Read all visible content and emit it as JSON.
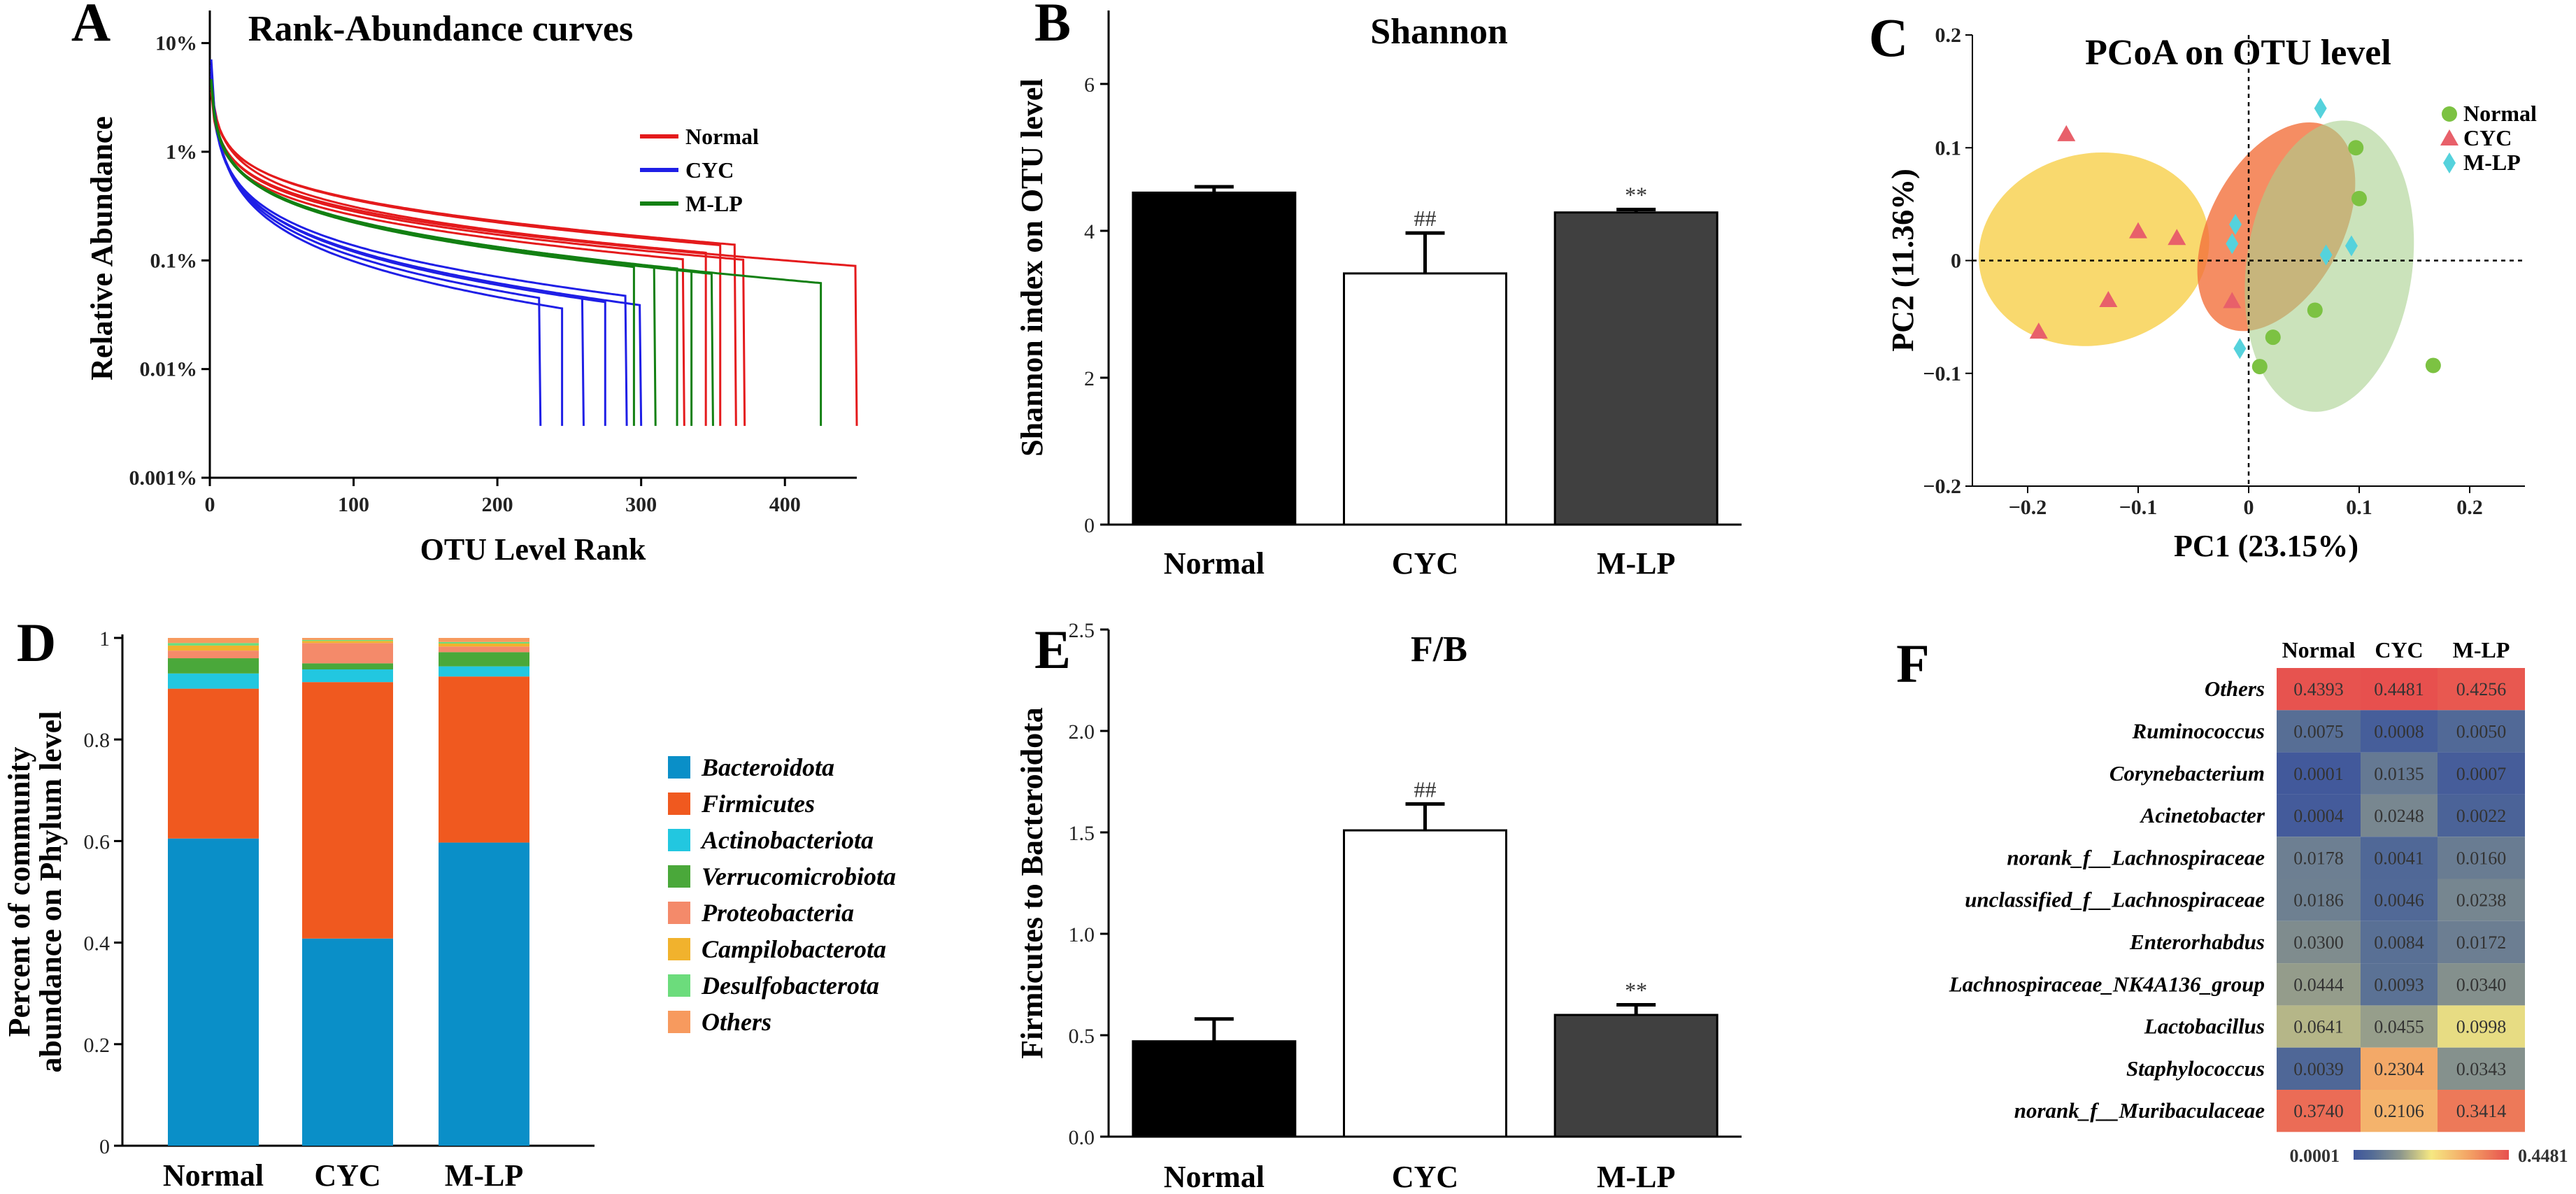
{
  "colors": {
    "normal": "#e41a1c",
    "cyc": "#1f1fe6",
    "mlp": "#138013",
    "bar_normal": "#000000",
    "bar_cyc": "#ffffff",
    "bar_mlp": "#404040",
    "pcoa_normal": "#7cc242",
    "pcoa_cyc": "#e8606a",
    "pcoa_mlp": "#55d2dc",
    "ellipse_normal": "#a9d18e",
    "ellipse_cyc": "#f2703c",
    "ellipse_mlp": "#f8cf4a"
  },
  "chart_data": [
    {
      "panel": "A",
      "type": "line",
      "title": "Rank-Abundance curves",
      "xlabel": "OTU Level Rank",
      "ylabel": "Relative Abundance",
      "xlim": [
        0,
        450
      ],
      "ylog": true,
      "ylim_log10": [
        -5,
        -0.7
      ],
      "x_ticks": [
        "0",
        "100",
        "200",
        "300",
        "400"
      ],
      "y_ticks": [
        "0.001%",
        "0.01%",
        "0.1%",
        "1%",
        "10%"
      ],
      "legend": [
        "Normal",
        "CYC",
        "M-LP"
      ],
      "series": [
        {
          "name": "Normal",
          "curves": [
            {
              "n": 372,
              "a": -1.4,
              "b": 0.55,
              "c": 0.0032
            },
            {
              "n": 355,
              "a": -1.35,
              "b": 0.52,
              "c": 0.0034
            },
            {
              "n": 330,
              "a": -1.45,
              "b": 0.54,
              "c": 0.0036
            },
            {
              "n": 345,
              "a": -1.3,
              "b": 0.58,
              "c": 0.003
            },
            {
              "n": 366,
              "a": -1.38,
              "b": 0.5,
              "c": 0.0035
            },
            {
              "n": 450,
              "a": -1.42,
              "b": 0.53,
              "c": 0.0033
            }
          ]
        },
        {
          "name": "CYC",
          "curves": [
            {
              "n": 230,
              "a": -1.2,
              "b": 0.85,
              "c": 0.004
            },
            {
              "n": 260,
              "a": -1.25,
              "b": 0.8,
              "c": 0.0042
            },
            {
              "n": 245,
              "a": -1.15,
              "b": 0.9,
              "c": 0.0038
            },
            {
              "n": 290,
              "a": -1.3,
              "b": 0.75,
              "c": 0.0041
            },
            {
              "n": 300,
              "a": -1.28,
              "b": 0.78,
              "c": 0.0044
            },
            {
              "n": 275,
              "a": -1.22,
              "b": 0.82,
              "c": 0.0039
            }
          ]
        },
        {
          "name": "M-LP",
          "curves": [
            {
              "n": 295,
              "a": -1.35,
              "b": 0.62,
              "c": 0.004
            },
            {
              "n": 325,
              "a": -1.38,
              "b": 0.6,
              "c": 0.0038
            },
            {
              "n": 350,
              "a": -1.33,
              "b": 0.63,
              "c": 0.0036
            },
            {
              "n": 335,
              "a": -1.36,
              "b": 0.61,
              "c": 0.0039
            },
            {
              "n": 425,
              "a": -1.34,
              "b": 0.62,
              "c": 0.0037
            },
            {
              "n": 310,
              "a": -1.37,
              "b": 0.6,
              "c": 0.0041
            }
          ]
        }
      ]
    },
    {
      "panel": "B",
      "type": "bar",
      "title": "Shannon",
      "ylabel": "Shannon index on OTU level",
      "categories": [
        "Normal",
        "CYC",
        "M-LP"
      ],
      "values": [
        4.52,
        3.42,
        4.25
      ],
      "errors": [
        0.08,
        0.55,
        0.04
      ],
      "annotations": [
        "",
        "##",
        "**"
      ],
      "ylim": [
        0,
        7
      ],
      "y_ticks": [
        "0",
        "2",
        "4",
        "6"
      ]
    },
    {
      "panel": "C",
      "type": "scatter",
      "title": "PCoA on OTU level",
      "xlabel": "PC1 (23.15%)",
      "ylabel": "PC2 (11.36%)",
      "xlim": [
        -0.25,
        0.25
      ],
      "ylim": [
        -0.2,
        0.2
      ],
      "x_ticks": [
        "-0.2",
        "-0.1",
        "0",
        "0.1",
        "0.2"
      ],
      "y_ticks": [
        "-0.2",
        "-0.1",
        "0",
        "0.1",
        "0.2"
      ],
      "legend": [
        "Normal",
        "CYC",
        "M-LP"
      ],
      "series": [
        {
          "name": "Normal",
          "points": [
            [
              0.097,
              0.1
            ],
            [
              0.1,
              0.055
            ],
            [
              0.06,
              -0.044
            ],
            [
              0.01,
              -0.094
            ],
            [
              0.167,
              -0.093
            ],
            [
              0.022,
              -0.068
            ]
          ]
        },
        {
          "name": "CYC",
          "points": [
            [
              -0.165,
              0.112
            ],
            [
              -0.1,
              0.026
            ],
            [
              -0.065,
              0.02
            ],
            [
              -0.127,
              -0.035
            ],
            [
              -0.19,
              -0.063
            ],
            [
              -0.015,
              -0.036
            ]
          ]
        },
        {
          "name": "M-LP",
          "points": [
            [
              0.065,
              0.135
            ],
            [
              -0.012,
              0.032
            ],
            [
              -0.015,
              0.015
            ],
            [
              0.07,
              0.005
            ],
            [
              0.093,
              0.013
            ],
            [
              -0.008,
              -0.078
            ]
          ]
        }
      ],
      "ellipses": [
        {
          "name": "CYC",
          "cx": -0.14,
          "cy": 0.01,
          "rx": 0.105,
          "ry": 0.085,
          "rot": -12
        },
        {
          "name": "M-LP",
          "cx": 0.025,
          "cy": 0.03,
          "rx": 0.06,
          "ry": 0.1,
          "rot": 28
        },
        {
          "name": "Normal",
          "cx": 0.073,
          "cy": -0.005,
          "rx": 0.075,
          "ry": 0.13,
          "rot": 8
        }
      ]
    },
    {
      "panel": "D",
      "type": "bar",
      "stacked": true,
      "ylabel_lines": [
        "Percent of community",
        "abundance on Phylum level"
      ],
      "categories": [
        "Normal",
        "CYC",
        "M-LP"
      ],
      "ylim": [
        0,
        1
      ],
      "y_ticks": [
        "0",
        "0.2",
        "0.4",
        "0.6",
        "0.8",
        "1"
      ],
      "series": [
        {
          "name": "Bacteroidota",
          "color": "#0a8fc8",
          "values": [
            0.605,
            0.408,
            0.597
          ]
        },
        {
          "name": "Firmicutes",
          "color": "#f0591f",
          "values": [
            0.295,
            0.505,
            0.327
          ]
        },
        {
          "name": "Actinobacteriota",
          "color": "#22c7e0",
          "values": [
            0.03,
            0.025,
            0.02
          ]
        },
        {
          "name": "Verrucomicrobiota",
          "color": "#4aa83a",
          "values": [
            0.03,
            0.012,
            0.028
          ]
        },
        {
          "name": "Proteobacteria",
          "color": "#f48a6a",
          "values": [
            0.015,
            0.04,
            0.011
          ]
        },
        {
          "name": "Campilobacterota",
          "color": "#f1b22d",
          "values": [
            0.01,
            0.004,
            0.006
          ]
        },
        {
          "name": "Desulfobacterota",
          "color": "#6cdc7c",
          "values": [
            0.005,
            0.002,
            0.003
          ]
        },
        {
          "name": "Others",
          "color": "#f79a5e",
          "values": [
            0.01,
            0.004,
            0.008
          ]
        }
      ]
    },
    {
      "panel": "E",
      "type": "bar",
      "title": "F/B",
      "ylabel": "Firmicutes to Bacteroidota",
      "categories": [
        "Normal",
        "CYC",
        "M-LP"
      ],
      "values": [
        0.47,
        1.51,
        0.6
      ],
      "errors": [
        0.11,
        0.13,
        0.05
      ],
      "annotations": [
        "",
        "##",
        "**"
      ],
      "ylim": [
        0,
        2.5
      ],
      "y_ticks": [
        "0.0",
        "0.5",
        "1.0",
        "1.5",
        "2.0",
        "2.5"
      ]
    },
    {
      "panel": "F",
      "type": "heatmap",
      "columns": [
        "Normal",
        "CYC",
        "M-LP"
      ],
      "rows": [
        "Others",
        "Ruminococcus",
        "Corynebacterium",
        "Acinetobacter",
        "norank_f__Lachnospiraceae",
        "unclassified_f__Lachnospiraceae",
        "Enterorhabdus",
        "Lachnospiraceae_NK4A136_group",
        "Lactobacillus",
        "Staphylococcus",
        "norank_f__Muribaculaceae"
      ],
      "values": [
        [
          "0.4393",
          "0.4481",
          "0.4256"
        ],
        [
          "0.0075",
          "0.0008",
          "0.0050"
        ],
        [
          "0.0001",
          "0.0135",
          "0.0007"
        ],
        [
          "0.0004",
          "0.0248",
          "0.0022"
        ],
        [
          "0.0178",
          "0.0041",
          "0.0160"
        ],
        [
          "0.0186",
          "0.0046",
          "0.0238"
        ],
        [
          "0.0300",
          "0.0084",
          "0.0172"
        ],
        [
          "0.0444",
          "0.0093",
          "0.0340"
        ],
        [
          "0.0641",
          "0.0455",
          "0.0998"
        ],
        [
          "0.0039",
          "0.2304",
          "0.0343"
        ],
        [
          "0.3740",
          "0.2106",
          "0.3414"
        ]
      ],
      "scale_min": "0.0001",
      "scale_max": "0.4481"
    }
  ]
}
